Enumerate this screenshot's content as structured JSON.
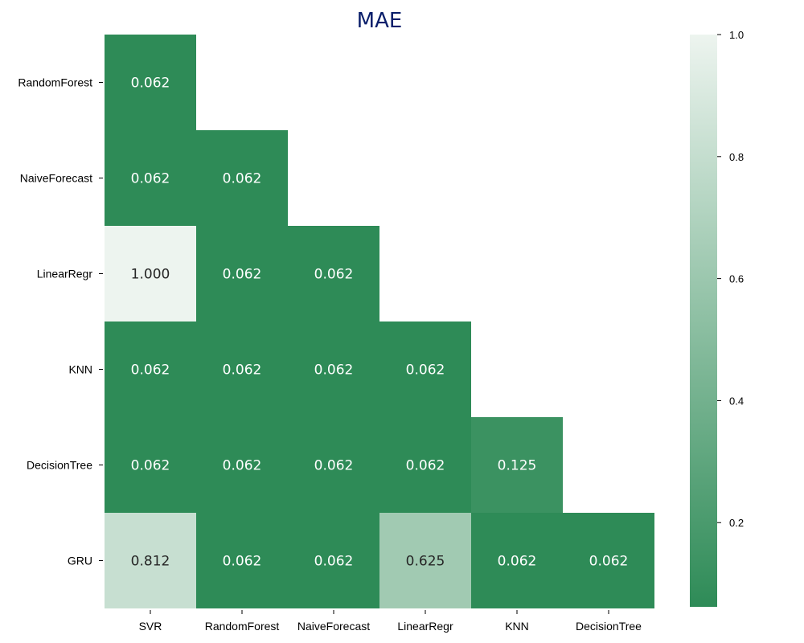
{
  "chart_data": {
    "type": "heatmap",
    "title": "MAE",
    "x_categories": [
      "SVR",
      "RandomForest",
      "NaiveForecast",
      "LinearRegr",
      "KNN",
      "DecisionTree"
    ],
    "y_categories": [
      "RandomForest",
      "NaiveForecast",
      "LinearRegr",
      "KNN",
      "DecisionTree",
      "GRU"
    ],
    "values": [
      [
        0.062,
        null,
        null,
        null,
        null,
        null
      ],
      [
        0.062,
        0.062,
        null,
        null,
        null,
        null
      ],
      [
        1.0,
        0.062,
        0.062,
        null,
        null,
        null
      ],
      [
        0.062,
        0.062,
        0.062,
        0.062,
        null,
        null
      ],
      [
        0.062,
        0.062,
        0.062,
        0.062,
        0.125,
        null
      ],
      [
        0.812,
        0.062,
        0.062,
        0.625,
        0.062,
        0.062
      ]
    ],
    "value_format": "0.000",
    "mask": "upper-triangle",
    "colorbar": {
      "range": [
        0.062,
        1.0
      ],
      "ticks": [
        "0.2",
        "0.4",
        "0.6",
        "0.8",
        "1.0"
      ],
      "low_color": "#2e8b57",
      "high_color": "#edf4ef"
    },
    "grid": false
  }
}
